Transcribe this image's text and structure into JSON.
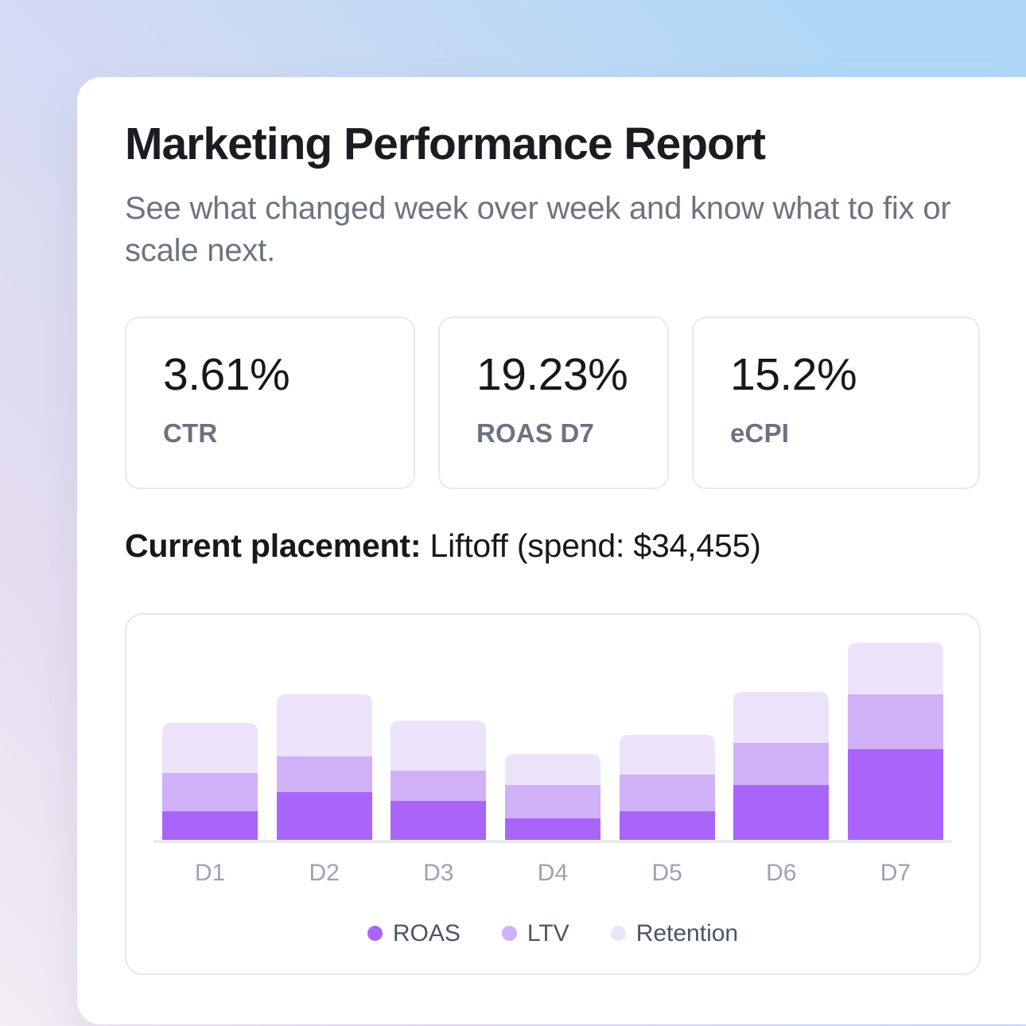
{
  "page": {
    "background_gradient": [
      "#f3edf5",
      "#e6ddf0",
      "#cfdaf2",
      "#b0d8f6"
    ],
    "card_background": "#ffffff"
  },
  "report": {
    "title": "Marketing Performance Report",
    "subtitle": "See what changed week over week  and know what to fix or scale next.",
    "kpis": [
      {
        "value": "3.61%",
        "label": "CTR"
      },
      {
        "value": "19.23%",
        "label": "ROAS D7"
      },
      {
        "value": "15.2%",
        "label": "eCPI"
      }
    ],
    "placement": {
      "label": "Current placement:",
      "value": "Liftoff (spend: $34,455)"
    }
  },
  "chart_data": {
    "type": "bar",
    "stacked": true,
    "categories": [
      "D1",
      "D2",
      "D3",
      "D4",
      "D5",
      "D6",
      "D7"
    ],
    "series": [
      {
        "name": "ROAS",
        "color": "#a965fa",
        "values": [
          36,
          60,
          49,
          27,
          36,
          69,
          114
        ]
      },
      {
        "name": "LTV",
        "color": "#d0b1f8",
        "values": [
          48,
          45,
          38,
          42,
          46,
          53,
          69
        ]
      },
      {
        "name": "Retention",
        "color": "#ece3fb",
        "values": [
          63,
          78,
          63,
          39,
          50,
          64,
          65
        ]
      }
    ],
    "units": "relative (no numeric axis shown in chart)",
    "ylim": [
      0,
      260
    ],
    "grid": false,
    "legend_position": "bottom",
    "legend_entries": [
      "ROAS",
      "LTV",
      "Retention"
    ],
    "axis_line_color": "#e9e9ed",
    "category_label_color": "#9ca3af",
    "legend_text_color": "#4b5563"
  }
}
